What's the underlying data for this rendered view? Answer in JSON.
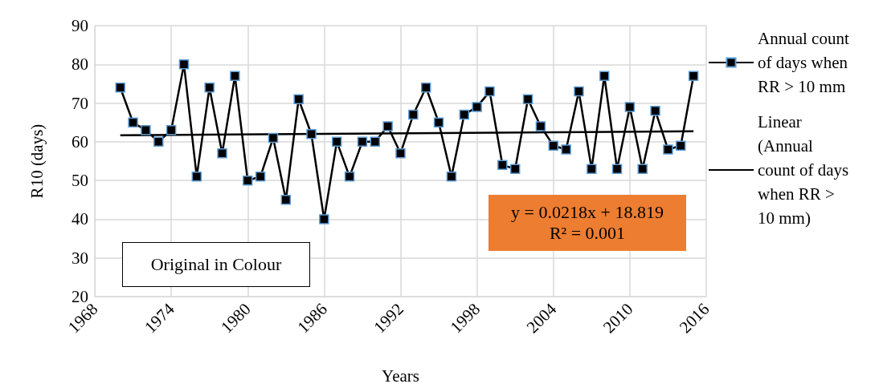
{
  "chart_data": {
    "type": "line",
    "xlabel": "Years",
    "ylabel": "R10 (days)",
    "x": [
      1970,
      1971,
      1972,
      1973,
      1974,
      1975,
      1976,
      1977,
      1978,
      1979,
      1980,
      1981,
      1982,
      1983,
      1984,
      1985,
      1986,
      1987,
      1988,
      1989,
      1990,
      1991,
      1992,
      1993,
      1994,
      1995,
      1996,
      1997,
      1998,
      1999,
      2000,
      2001,
      2002,
      2003,
      2004,
      2005,
      2006,
      2007,
      2008,
      2009,
      2010,
      2011,
      2012,
      2013,
      2014,
      2015
    ],
    "series": [
      {
        "name": "Annual count of days when RR > 10 mm",
        "color": "#000000",
        "marker": "square",
        "values": [
          74,
          65,
          63,
          60,
          63,
          80,
          51,
          74,
          57,
          77,
          50,
          51,
          61,
          45,
          71,
          62,
          40,
          60,
          51,
          60,
          60,
          64,
          57,
          67,
          74,
          65,
          51,
          67,
          69,
          73,
          54,
          53,
          71,
          64,
          59,
          58,
          73,
          53,
          77,
          53,
          69,
          53,
          68,
          58,
          59,
          77
        ]
      },
      {
        "name": "Linear (Annual count of days when RR > 10 mm)",
        "color": "#000000",
        "marker": "none",
        "x": [
          1970,
          2015
        ],
        "values": [
          61.7,
          62.7
        ]
      }
    ],
    "xlim": [
      1968,
      2016
    ],
    "xticks": [
      1968,
      1974,
      1980,
      1986,
      1992,
      1998,
      2004,
      2010,
      2016
    ],
    "ylim": [
      20,
      90
    ],
    "yticks": [
      20,
      30,
      40,
      50,
      60,
      70,
      80,
      90
    ],
    "grid": true,
    "legend": "right",
    "line_style": "solid",
    "annotations": [
      "y = 0.0218x + 18.819\nR² = 0.001",
      "Original in Colour"
    ]
  }
}
